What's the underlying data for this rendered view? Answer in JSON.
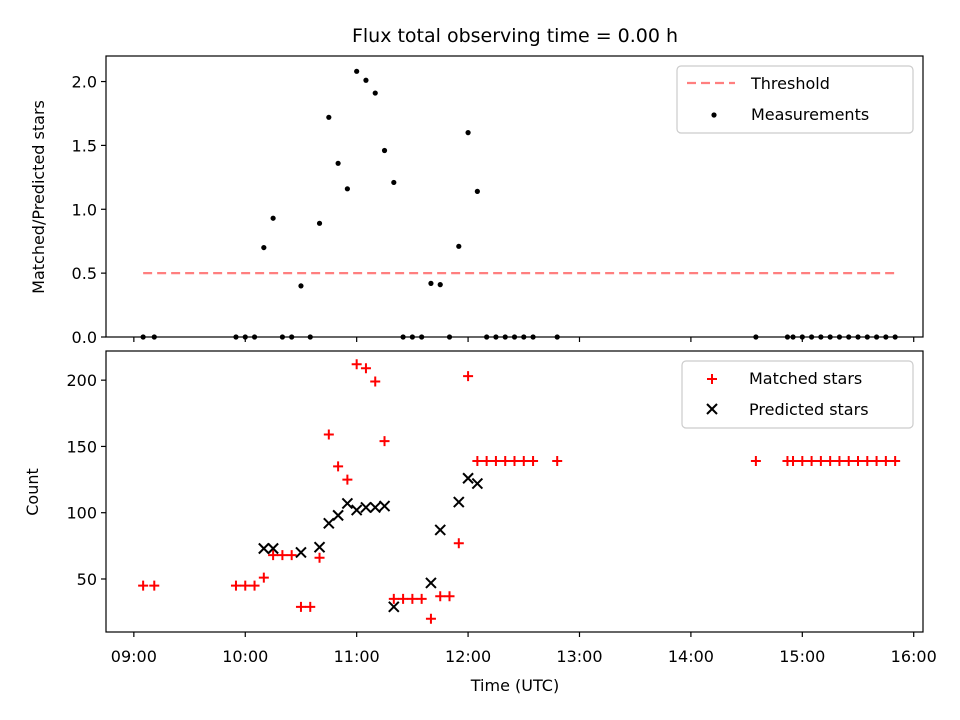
{
  "chart_data": [
    {
      "type": "scatter",
      "title": "Flux total observing time = 0.00 h",
      "xlabel": "",
      "ylabel": "Matched/Predicted stars",
      "ylim": [
        0,
        2.2
      ],
      "xlim": [
        "08:45",
        "16:05"
      ],
      "yticks": [
        "0.0",
        "0.5",
        "1.0",
        "1.5",
        "2.0"
      ],
      "legend_position": "top-right",
      "grid": false,
      "series": [
        {
          "name": "Threshold",
          "kind": "dashed-line",
          "color": "#ff7f7f",
          "x": [
            "09:05",
            "15:50"
          ],
          "y": [
            0.5,
            0.5
          ]
        },
        {
          "name": "Measurements",
          "kind": "points",
          "color": "#000000",
          "x": [
            "09:05",
            "09:11",
            "09:55",
            "10:00",
            "10:05",
            "10:10",
            "10:15",
            "10:20",
            "10:25",
            "10:30",
            "10:35",
            "10:40",
            "10:45",
            "10:50",
            "10:55",
            "11:00",
            "11:05",
            "11:10",
            "11:15",
            "11:20",
            "11:25",
            "11:30",
            "11:35",
            "11:40",
            "11:45",
            "11:50",
            "11:55",
            "12:00",
            "12:05",
            "12:10",
            "12:15",
            "12:20",
            "12:25",
            "12:30",
            "12:35",
            "12:48",
            "14:35",
            "14:52",
            "14:55",
            "15:00",
            "15:05",
            "15:10",
            "15:15",
            "15:20",
            "15:25",
            "15:30",
            "15:35",
            "15:40",
            "15:45",
            "15:50"
          ],
          "y": [
            0.0,
            0.0,
            0.0,
            0.0,
            0.0,
            0.7,
            0.93,
            0.0,
            0.0,
            0.4,
            0.0,
            0.89,
            1.72,
            1.36,
            1.16,
            2.08,
            2.01,
            1.91,
            1.46,
            1.21,
            0.0,
            0.0,
            0.0,
            0.42,
            0.41,
            0.0,
            0.71,
            1.6,
            1.14,
            0.0,
            0.0,
            0.0,
            0.0,
            0.0,
            0.0,
            0.0,
            0.0,
            0.0,
            0.0,
            0.0,
            0.0,
            0.0,
            0.0,
            0.0,
            0.0,
            0.0,
            0.0,
            0.0,
            0.0,
            0.0
          ]
        }
      ]
    },
    {
      "type": "scatter",
      "title": "",
      "xlabel": "Time (UTC)",
      "ylabel": "Count",
      "ylim": [
        10,
        222
      ],
      "xlim": [
        "08:45",
        "16:05"
      ],
      "yticks": [
        "50",
        "100",
        "150",
        "200"
      ],
      "xticks": [
        "09:00",
        "10:00",
        "11:00",
        "12:00",
        "13:00",
        "14:00",
        "15:00",
        "16:00"
      ],
      "legend_position": "top-right",
      "grid": false,
      "series": [
        {
          "name": "Matched stars",
          "kind": "plus",
          "color": "#ff0000",
          "x": [
            "09:05",
            "09:11",
            "09:55",
            "10:00",
            "10:05",
            "10:10",
            "10:15",
            "10:20",
            "10:25",
            "10:30",
            "10:35",
            "10:40",
            "10:45",
            "10:50",
            "10:55",
            "11:00",
            "11:05",
            "11:10",
            "11:15",
            "11:20",
            "11:25",
            "11:30",
            "11:35",
            "11:40",
            "11:45",
            "11:50",
            "11:55",
            "12:00",
            "12:05",
            "12:10",
            "12:15",
            "12:20",
            "12:25",
            "12:30",
            "12:35",
            "12:48",
            "14:35",
            "14:52",
            "14:55",
            "15:00",
            "15:05",
            "15:10",
            "15:15",
            "15:20",
            "15:25",
            "15:30",
            "15:35",
            "15:40",
            "15:45",
            "15:50"
          ],
          "y": [
            45,
            45,
            45,
            45,
            45,
            51,
            68,
            68,
            68,
            29,
            29,
            66,
            159,
            135,
            125,
            212,
            209,
            199,
            154,
            35,
            35,
            35,
            35,
            20,
            37,
            37,
            77,
            203,
            139,
            139,
            139,
            139,
            139,
            139,
            139,
            139,
            139,
            139,
            139,
            139,
            139,
            139,
            139,
            139,
            139,
            139,
            139,
            139,
            139,
            139
          ]
        },
        {
          "name": "Predicted stars",
          "kind": "x",
          "color": "#000000",
          "x": [
            "10:10",
            "10:15",
            "10:30",
            "10:40",
            "10:45",
            "10:50",
            "10:55",
            "11:00",
            "11:05",
            "11:10",
            "11:15",
            "11:20",
            "11:40",
            "11:45",
            "11:55",
            "12:00",
            "12:05"
          ],
          "y": [
            73,
            73,
            70,
            74,
            92,
            98,
            107,
            102,
            104,
            104,
            105,
            29,
            47,
            87,
            108,
            126,
            122
          ]
        }
      ]
    }
  ]
}
